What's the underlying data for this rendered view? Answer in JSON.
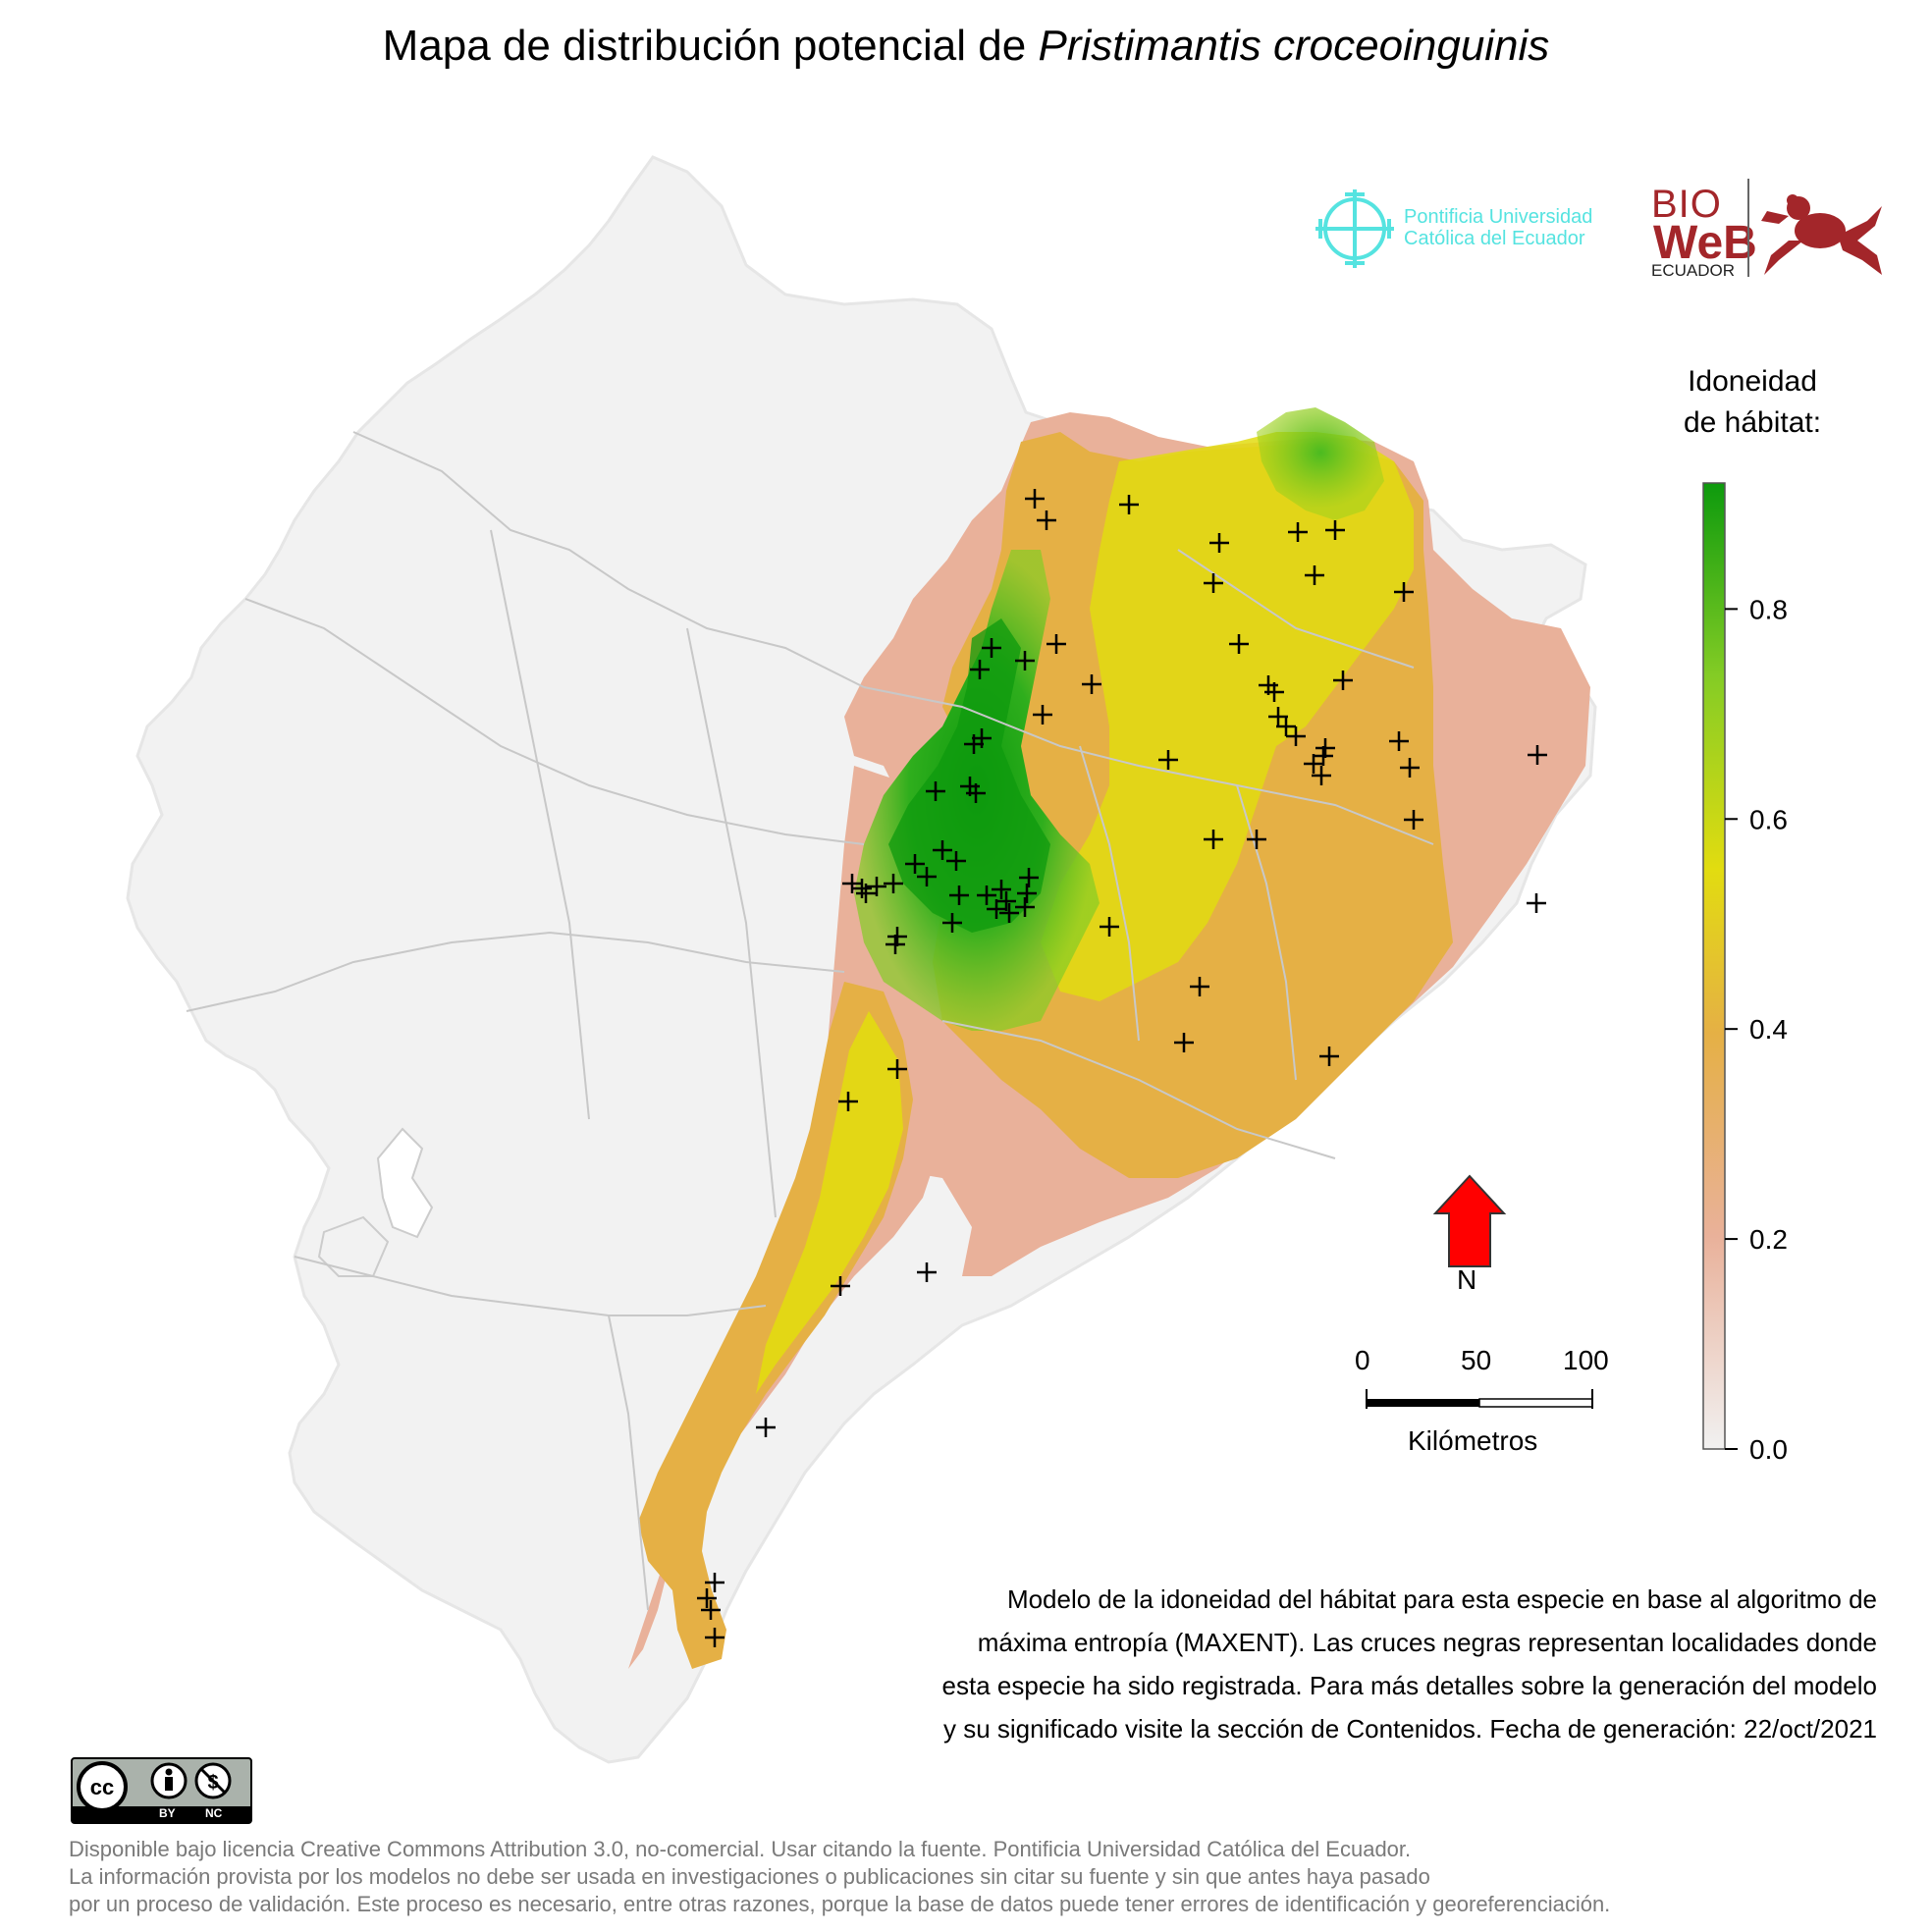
{
  "title": {
    "prefix": "Mapa de distribución potencial de",
    "species": "Pristimantis croceoinguinis"
  },
  "logos": {
    "puce": {
      "line1": "Pontificia Universidad",
      "line2": "Católica del Ecuador",
      "color": "#55e3e0"
    },
    "bioweb": {
      "line1": "BIO",
      "line2": "WeB",
      "line3": "ECUADOR",
      "color": "#a3262a"
    }
  },
  "legend": {
    "title_line1": "Idoneidad",
    "title_line2": "de hábitat:",
    "ticks": [
      "0.8",
      "0.6",
      "0.4",
      "0.2",
      "0.0"
    ],
    "tick_values": [
      0.8,
      0.6,
      0.4,
      0.2,
      0.0
    ],
    "range": [
      0.0,
      0.92
    ],
    "colors": [
      "#f1f1f1",
      "#e9b19a",
      "#e5b045",
      "#e2dc10",
      "#84cc25",
      "#0d9a0d"
    ]
  },
  "north_arrow": {
    "label": "N",
    "color": "#ff0000",
    "icon": "north-arrow-icon"
  },
  "scale_bar": {
    "ticks": [
      "0",
      "50",
      "100"
    ],
    "unit": "Kilómetros"
  },
  "caption": {
    "line1": "Modelo de la idoneidad del hábitat para esta especie en base al algoritmo de",
    "line2": "máxima entropía (MAXENT). Las cruces negras representan localidades donde",
    "line3": "esta especie ha sido registrada. Para más detalles sobre la generación del modelo",
    "line4": "y su significado visite la sección de Contenidos. Fecha de generación: 22/oct/2021"
  },
  "license_badge": {
    "by": "BY",
    "nc": "NC",
    "icon": "creative-commons-icon"
  },
  "footer": {
    "line1": "Disponible bajo licencia Creative Commons Attribution 3.0, no-comercial. Usar citando la fuente. Pontificia Universidad Católica del Ecuador.",
    "line2": "La información provista por los modelos no debe ser usada en investigaciones o publicaciones sin citar su fuente y sin que antes haya pasado",
    "line3": "por un proceso de validación. Este proceso es necesario, entre otras razones, porque la base de datos puede tener errores de identificación y georeferenciación."
  },
  "colors": {
    "land": "#f2f2f2",
    "province_border": "#c8c8c8",
    "low": "#e9b19a",
    "mid": "#e5b045",
    "yellow": "#e2dc10",
    "lightgreen": "#84cc25",
    "green": "#0d9a0d"
  }
}
